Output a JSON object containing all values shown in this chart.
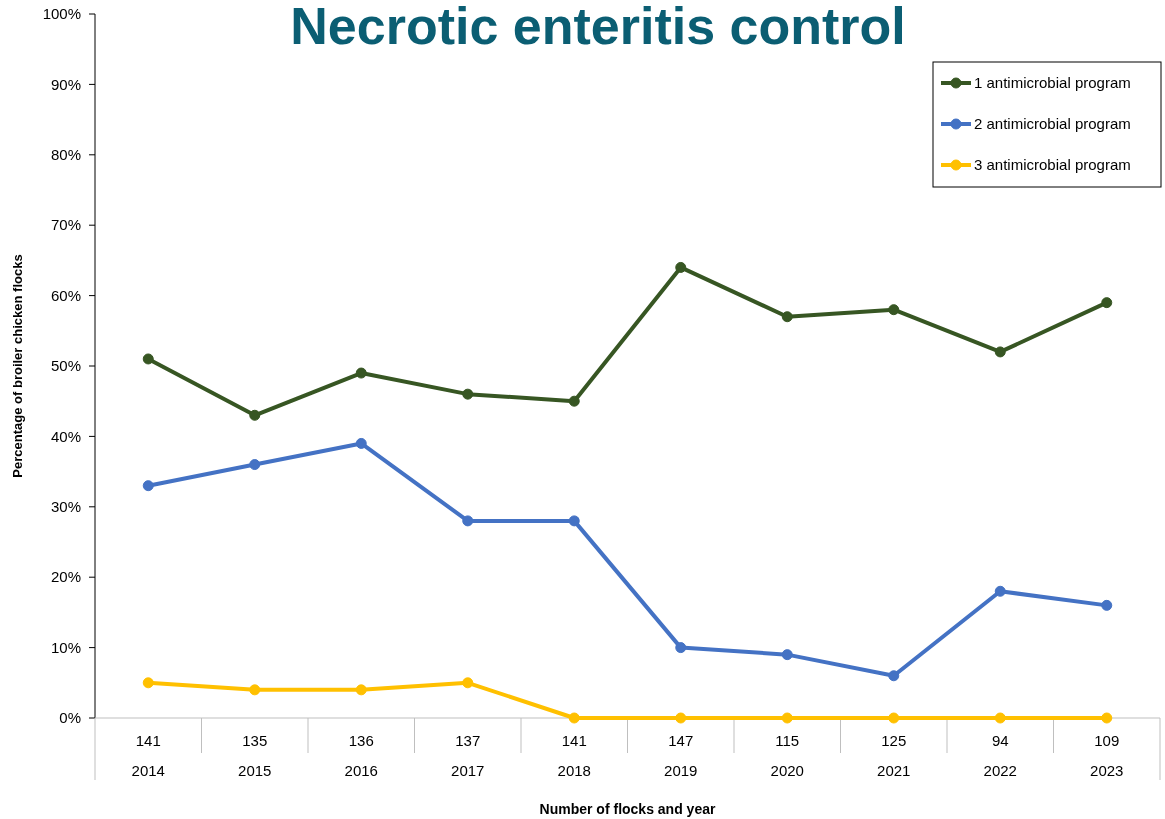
{
  "chart_data": {
    "type": "line",
    "title": "Necrotic enteritis control",
    "xlabel": "Number of flocks and year",
    "ylabel": "Percentage of broiler chicken flocks",
    "categories": [
      "141\n2014",
      "135\n2015",
      "136\n2016",
      "137\n2017",
      "141\n2018",
      "147\n2019",
      "115\n2020",
      "125\n2021",
      "94\n2022",
      "109\n2023"
    ],
    "series": [
      {
        "name": "1 antimicrobial program",
        "color": "#375623",
        "values": [
          51,
          43,
          49,
          46,
          45,
          64,
          57,
          58,
          52,
          59
        ]
      },
      {
        "name": "2 antimicrobial program",
        "color": "#4472c4",
        "values": [
          33,
          36,
          39,
          28,
          28,
          10,
          9,
          6,
          18,
          16
        ]
      },
      {
        "name": "3 antimicrobial program",
        "color": "#ffc000",
        "values": [
          5,
          4,
          4,
          5,
          0,
          0,
          0,
          0,
          0,
          0
        ]
      }
    ],
    "ylim": [
      0,
      100
    ],
    "yticks": [
      {
        "value": 0,
        "label": "0%"
      },
      {
        "value": 10,
        "label": "10%"
      },
      {
        "value": 20,
        "label": "20%"
      },
      {
        "value": 30,
        "label": "30%"
      },
      {
        "value": 40,
        "label": "40%"
      },
      {
        "value": 50,
        "label": "50%"
      },
      {
        "value": 60,
        "label": "60%"
      },
      {
        "value": 70,
        "label": "70%"
      },
      {
        "value": 80,
        "label": "80%"
      },
      {
        "value": 90,
        "label": "90%"
      },
      {
        "value": 100,
        "label": "100%"
      }
    ],
    "grid": false,
    "legend": "top right",
    "marker": "circle",
    "line_style": "solid"
  }
}
